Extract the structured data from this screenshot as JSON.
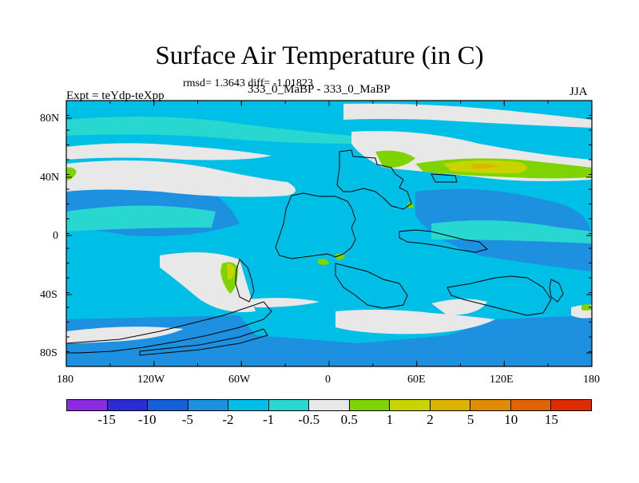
{
  "title": "Surface Air Temperature (in C)",
  "stats": "rmsd= 1.3643 diff= -1.01823",
  "left_label": "Expt = teYdp-teXpp",
  "center_label": "333_0_MaBP - 333_0_MaBP",
  "right_label": "JJA",
  "lat_labels": [
    "80N",
    "40N",
    "0",
    "40S",
    "80S"
  ],
  "lon_labels": [
    "180",
    "120W",
    "60W",
    "0",
    "60E",
    "120E",
    "180"
  ],
  "colorbar": {
    "colors": [
      "#8a2be2",
      "#2b2bd8",
      "#1560d8",
      "#1e90e0",
      "#00bfe6",
      "#28d8d0",
      "#e8e8e8",
      "#7fd400",
      "#c8d400",
      "#dcb400",
      "#e08c00",
      "#e06400",
      "#e02a00"
    ],
    "labels": [
      "-15",
      "-10",
      "-5",
      "-2",
      "-1",
      "-0.5",
      "0.5",
      "1",
      "2",
      "5",
      "10",
      "15"
    ]
  },
  "map_colors": {
    "background": "#00bfe6",
    "deep": "#1e90e0",
    "light": "#28d8d0",
    "neutral": "#e8e8e8",
    "green": "#7fd400",
    "yellow": "#c8d400",
    "orange": "#dcb400"
  }
}
